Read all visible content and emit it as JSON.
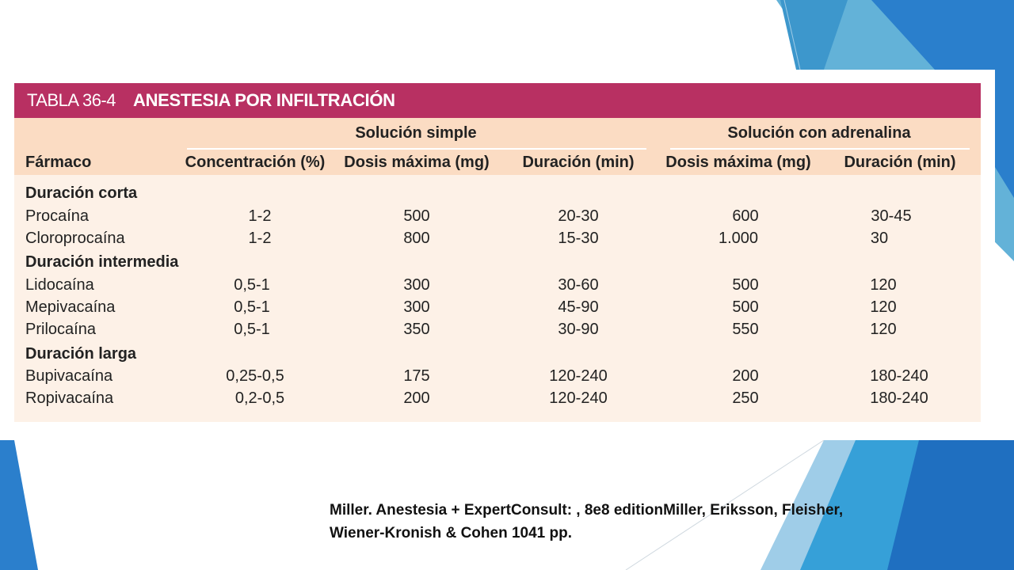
{
  "table": {
    "number": "TABLA 36-4",
    "title": "ANESTESIA POR INFILTRACIÓN",
    "group_headers": {
      "simple": "Solución simple",
      "adrenaline": "Solución con adrenalina"
    },
    "columns": [
      "Fármaco",
      "Concentración (%)",
      "Dosis máxima (mg)",
      "Duración (min)",
      "Dosis máxima (mg)",
      "Duración (min)"
    ],
    "sections": [
      {
        "label": "Duración corta",
        "rows": [
          [
            "Procaína",
            "1-2",
            "500",
            "20-30",
            "600",
            "30-45"
          ],
          [
            "Cloroprocaína",
            "1-2",
            "800",
            "15-30",
            "1.000",
            "30"
          ]
        ]
      },
      {
        "label": "Duración intermedia",
        "rows": [
          [
            "Lidocaína",
            "0,5-1",
            "300",
            "30-60",
            "500",
            "120"
          ],
          [
            "Mepivacaína",
            "0,5-1",
            "300",
            "45-90",
            "500",
            "120"
          ],
          [
            "Prilocaína",
            "0,5-1",
            "350",
            "30-90",
            "550",
            "120"
          ]
        ]
      },
      {
        "label": "Duración larga",
        "rows": [
          [
            "Bupivacaína",
            "0,25-0,5",
            "175",
            "120-240",
            "200",
            "180-240"
          ],
          [
            "Ropivacaína",
            "0,2-0,5",
            "200",
            "120-240",
            "250",
            "180-240"
          ]
        ]
      }
    ]
  },
  "citation": "Miller. Anestesia + ExpertConsult: , 8e8 editionMiller, Eriksson, Fleisher, Wiener-Kronish & Cohen 1041 pp.",
  "colors": {
    "title_bar": "#b83062",
    "header_bg": "#fbdcc3",
    "body_bg": "#fdf1e7",
    "accent_blue": "#2f7fc8"
  }
}
